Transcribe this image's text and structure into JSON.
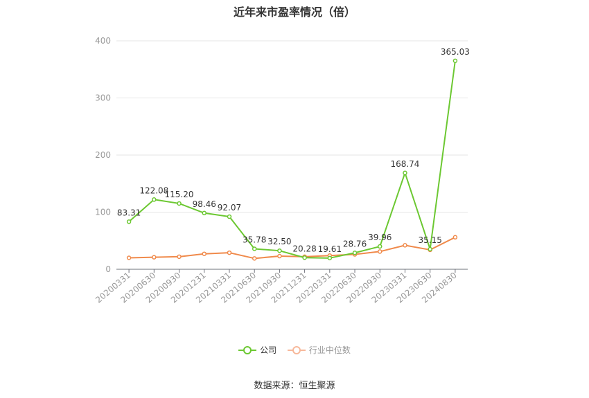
{
  "title": "近年来市盈率情况（倍）",
  "source": "数据来源：恒生聚源",
  "colors": {
    "company": "#6cc832",
    "industry": "#f08a4b"
  },
  "legend": {
    "company": "公司",
    "industry": "行业中位数"
  },
  "chart_data": {
    "type": "line",
    "categories": [
      "20200331",
      "20200630",
      "20200930",
      "20201231",
      "20210331",
      "20210630",
      "20210930",
      "20211231",
      "20220331",
      "20220630",
      "20220930",
      "20230331",
      "20230630",
      "20240830"
    ],
    "series": [
      {
        "name": "公司",
        "values": [
          83.31,
          122.08,
          115.2,
          98.46,
          92.07,
          35.78,
          32.5,
          20.28,
          19.61,
          28.76,
          39.96,
          168.74,
          35.15,
          365.03
        ],
        "labels": [
          "83.31",
          "122.08",
          "115.20",
          "98.46",
          "92.07",
          "35.78",
          "32.50",
          "20.28",
          "19.61",
          "28.76",
          "39.96",
          "168.74",
          "35.15",
          "365.03"
        ]
      },
      {
        "name": "行业中位数",
        "values": [
          20,
          21,
          22,
          27,
          29,
          19,
          23,
          22,
          24,
          26,
          31,
          42,
          34,
          56
        ]
      }
    ],
    "ylim": [
      0,
      400
    ],
    "yticks": [
      "0",
      "100",
      "200",
      "300",
      "400"
    ],
    "grid": true,
    "legend_position": "bottom"
  }
}
